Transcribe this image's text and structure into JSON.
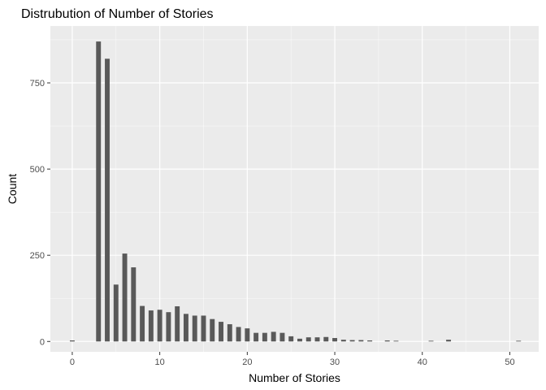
{
  "chart_data": {
    "type": "bar",
    "title": "Distrubution of Number of Stories",
    "xlabel": "Number of Stories",
    "ylabel": "Count",
    "xlim": [
      -2.5,
      53.3
    ],
    "ylim": [
      -30,
      915
    ],
    "x_ticks": [
      0,
      10,
      20,
      30,
      40,
      50
    ],
    "y_ticks": [
      0,
      250,
      500,
      750
    ],
    "grid": true,
    "legend": "none",
    "colors": {
      "panel": "#ebebeb",
      "grid_major": "#ffffff",
      "bar": "#595959",
      "tick_text": "#4d4d4d",
      "tick_mark": "#333333"
    },
    "x": [
      0,
      3,
      4,
      5,
      6,
      7,
      8,
      9,
      10,
      11,
      12,
      13,
      14,
      15,
      16,
      17,
      18,
      19,
      20,
      21,
      22,
      23,
      24,
      25,
      26,
      27,
      28,
      29,
      30,
      31,
      32,
      33,
      34,
      36,
      37,
      41,
      43,
      51
    ],
    "values": [
      3,
      870,
      820,
      165,
      255,
      215,
      103,
      90,
      92,
      85,
      102,
      80,
      75,
      75,
      65,
      57,
      50,
      42,
      38,
      25,
      25,
      28,
      25,
      15,
      8,
      12,
      12,
      13,
      10,
      5,
      4,
      4,
      3,
      3,
      2,
      2,
      5,
      2
    ]
  }
}
